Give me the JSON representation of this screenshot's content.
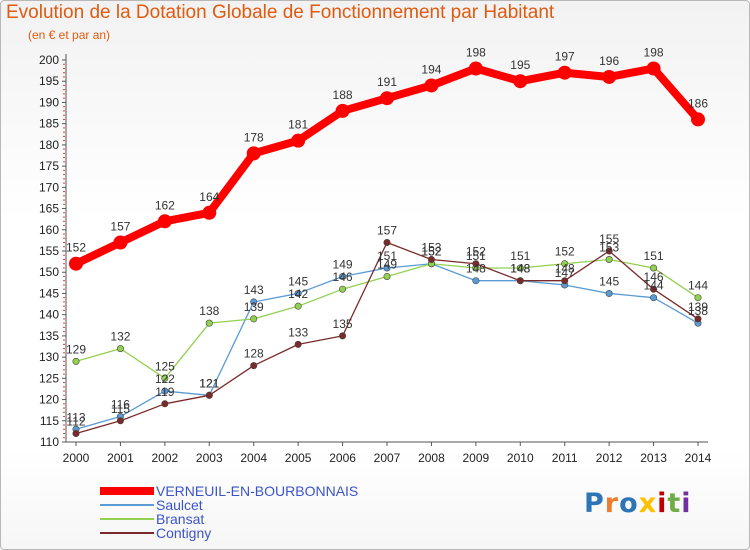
{
  "chart_data": {
    "type": "line",
    "title": "Evolution de la Dotation Globale de Fonctionnement par Habitant",
    "subtitle": "(en € et par an)",
    "x": [
      2000,
      2001,
      2002,
      2003,
      2004,
      2005,
      2006,
      2007,
      2008,
      2009,
      2010,
      2011,
      2012,
      2013,
      2014
    ],
    "ylim": [
      110,
      200
    ],
    "yticks": [
      110,
      115,
      120,
      125,
      130,
      135,
      140,
      145,
      150,
      155,
      160,
      165,
      170,
      175,
      180,
      185,
      190,
      195,
      200
    ],
    "grid": false,
    "legend_position": "bottom-left",
    "series": [
      {
        "name": "VERNEUIL-EN-BOURBONNAIS",
        "color": "#ff0000",
        "values": [
          152,
          157,
          162,
          164,
          178,
          181,
          188,
          191,
          194,
          198,
          195,
          197,
          196,
          198,
          186
        ]
      },
      {
        "name": "Saulcet",
        "color": "#5b9bd5",
        "values": [
          113,
          116,
          122,
          121,
          143,
          145,
          149,
          151,
          152,
          148,
          148,
          147,
          145,
          144,
          138
        ]
      },
      {
        "name": "Bransat",
        "color": "#92d050",
        "values": [
          129,
          132,
          125,
          138,
          139,
          142,
          146,
          149,
          152,
          151,
          151,
          152,
          153,
          151,
          144
        ]
      },
      {
        "name": "Contigny",
        "color": "#7b2a2a",
        "values": [
          112,
          115,
          119,
          121,
          128,
          133,
          135,
          157,
          153,
          152,
          148,
          148,
          155,
          146,
          139
        ]
      }
    ]
  },
  "logo": {
    "text": "Proxiti",
    "colors": [
      "#2e75b6",
      "#ed7d31",
      "#2e75b6",
      "#ffc000",
      "#c00000",
      "#70ad47",
      "#7030a0"
    ]
  }
}
